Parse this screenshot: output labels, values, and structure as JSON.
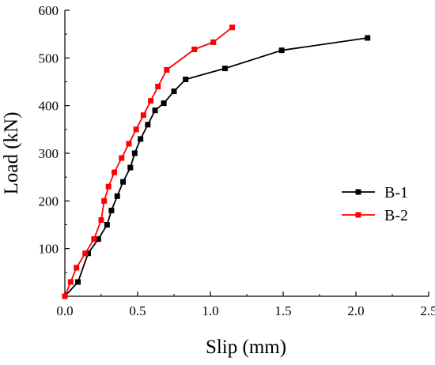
{
  "chart_data": {
    "type": "line",
    "title": "",
    "xlabel": "Slip (mm)",
    "ylabel": "Load (kN)",
    "xlim": [
      0.0,
      2.5
    ],
    "ylim": [
      0,
      600
    ],
    "xticks": [
      "0.0",
      "0.5",
      "1.0",
      "1.5",
      "2.0",
      "2.5"
    ],
    "yticks": [
      "100",
      "200",
      "300",
      "400",
      "500",
      "600"
    ],
    "grid": false,
    "legend_position": "center-right",
    "series": [
      {
        "name": "B-1",
        "color": "#000000",
        "marker": "square",
        "x": [
          0.0,
          0.09,
          0.16,
          0.23,
          0.29,
          0.32,
          0.36,
          0.4,
          0.45,
          0.48,
          0.52,
          0.57,
          0.62,
          0.68,
          0.75,
          0.83,
          1.1,
          1.49,
          2.08
        ],
        "y": [
          0,
          30,
          90,
          120,
          150,
          180,
          210,
          240,
          270,
          300,
          330,
          360,
          390,
          405,
          430,
          455,
          478,
          516,
          542
        ]
      },
      {
        "name": "B-2",
        "color": "#ff0000",
        "marker": "square",
        "x": [
          0.0,
          0.04,
          0.08,
          0.14,
          0.2,
          0.25,
          0.27,
          0.3,
          0.34,
          0.39,
          0.44,
          0.49,
          0.54,
          0.59,
          0.64,
          0.7,
          0.89,
          1.02,
          1.15
        ],
        "y": [
          0,
          30,
          60,
          90,
          120,
          160,
          200,
          230,
          260,
          290,
          320,
          350,
          380,
          410,
          440,
          475,
          518,
          533,
          564
        ]
      }
    ]
  }
}
